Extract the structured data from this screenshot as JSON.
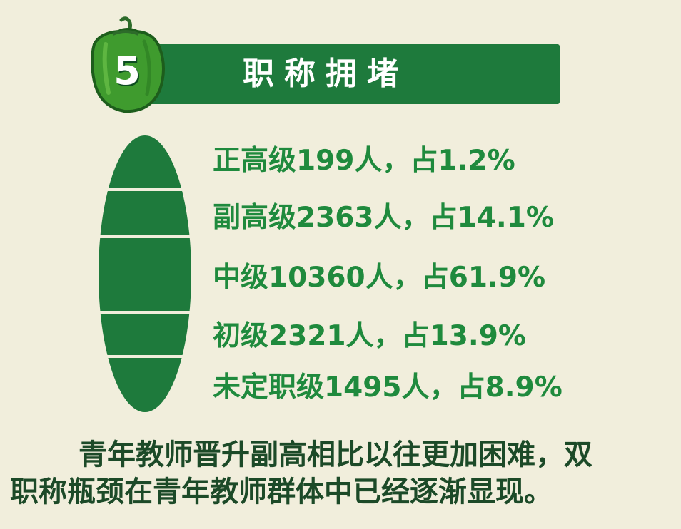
{
  "header": {
    "number": "5",
    "title": "职称拥堵",
    "color": "#1e7a3c"
  },
  "stats": [
    {
      "label": "正高级",
      "count": "199",
      "unit": "人",
      "sep": "，",
      "share_prefix": "占",
      "share": "1.2%",
      "percent": 1.2
    },
    {
      "label": "副高级",
      "count": "2363",
      "unit": "人",
      "sep": "，",
      "share_prefix": "占",
      "share": "14.1%",
      "percent": 14.1
    },
    {
      "label": "中级",
      "count": "10360",
      "unit": "人",
      "sep": "，",
      "share_prefix": "占",
      "share": "61.9%",
      "percent": 61.9
    },
    {
      "label": "初级",
      "count": "2321",
      "unit": "人",
      "sep": "，",
      "share_prefix": "占",
      "share": "13.9%",
      "percent": 13.9
    },
    {
      "label": "未定职级",
      "count": "1495",
      "unit": "人",
      "sep": "，",
      "share_prefix": "占",
      "share": "8.9%",
      "percent": 8.9
    }
  ],
  "conclusion": {
    "line1": "青年教师晋升副高相比以往更加困难，双",
    "line2": "职称瓶颈在青年教师群体中已经逐渐显现。"
  },
  "colors": {
    "background": "#f1eedc",
    "accent_green": "#1e7a3c",
    "stat_text": "#1f8a3d",
    "conclusion_text": "#1c4a28"
  },
  "icons": {
    "badge": "green-pepper-icon"
  }
}
